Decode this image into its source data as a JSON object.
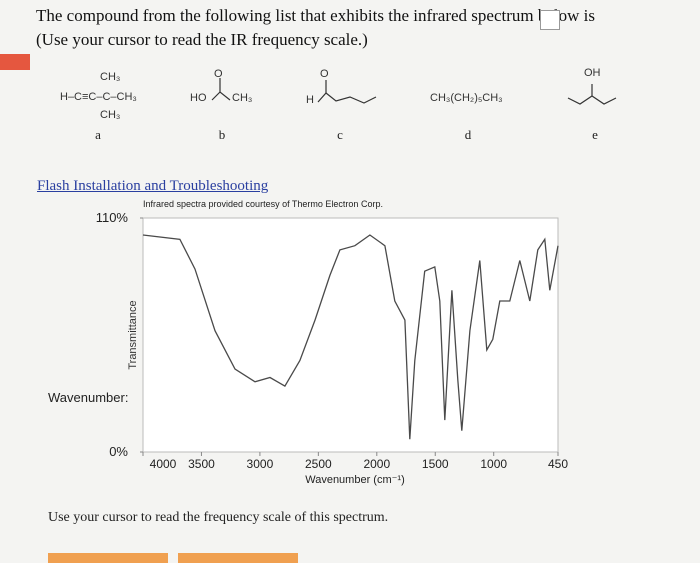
{
  "header": {
    "question": "The compound from the following list that exhibits the infrared spectrum below is",
    "hint": "(Use your cursor to read the IR frequency scale.)"
  },
  "compounds": [
    {
      "label": "a",
      "formula": [
        "CH₃",
        "H–C≡C–C–CH₃",
        "CH₃"
      ]
    },
    {
      "label": "b",
      "formula": [
        "O",
        "HO",
        "CH₃"
      ]
    },
    {
      "label": "c",
      "formula": [
        "O",
        "H"
      ]
    },
    {
      "label": "d",
      "formula": [
        "CH₃(CH₂)₅CH₃"
      ]
    },
    {
      "label": "e",
      "formula": [
        "OH"
      ]
    }
  ],
  "link": "Flash Installation and Troubleshooting",
  "chart_data": {
    "type": "line",
    "credit": "Infrared spectra provided courtesy of Thermo Electron Corp.",
    "y_label": "Transmittance",
    "x_label": "Wavenumber (cm⁻¹)",
    "readout_label": "Wavenumber:",
    "x": [
      4000,
      3684,
      3555,
      3384,
      3213,
      3042,
      2914,
      2786,
      2658,
      2529,
      2401,
      2316,
      2187,
      2059,
      1931,
      1846,
      1760,
      1718,
      1675,
      1590,
      1504,
      1461,
      1418,
      1358,
      1307,
      1273,
      1204,
      1119,
      1059,
      1008,
      948,
      862,
      777,
      691,
      623,
      563,
      520,
      450
    ],
    "values": [
      102,
      100,
      86,
      57,
      39,
      33,
      35,
      31,
      43,
      62,
      83,
      95,
      97,
      102,
      97,
      71,
      62,
      6,
      43,
      85,
      87,
      71,
      15,
      76,
      34,
      10,
      57,
      90,
      48,
      53,
      71,
      71,
      90,
      71,
      95,
      100,
      76,
      97
    ],
    "color": "#4a4a4a",
    "xlim": [
      4000,
      450
    ],
    "xticks": [
      4000,
      3500,
      3000,
      2500,
      2000,
      1500,
      1000,
      450
    ],
    "ylim": [
      0,
      110
    ],
    "yticks": [
      {
        "value": 0,
        "label": "0%"
      },
      {
        "value": 110,
        "label": "110%"
      }
    ]
  },
  "footer": "Use your cursor to read the frequency scale of this spectrum."
}
